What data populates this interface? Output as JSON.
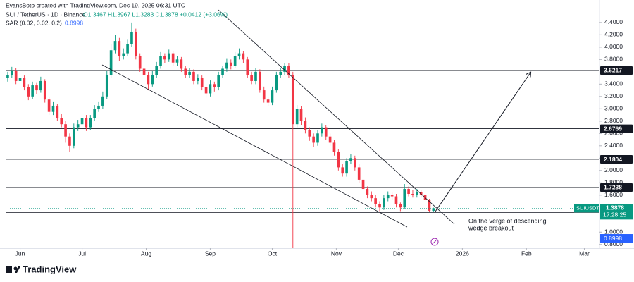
{
  "chart_data": {
    "type": "candlestick",
    "attribution": "EvansBoto created with TradingView.com, Dec 19, 2025 06:31 UTC",
    "title": "SUI / TetherUS · 1D · Binance",
    "ohlc_text": "O1.3467 H1.3967 L1.3283 C1.3878 +0.0412 (+3.06%)",
    "indicator": {
      "name": "SAR (0.02, 0.02, 0.2)",
      "value": 0.8998,
      "color": "#2962ff"
    },
    "up_color": "#089981",
    "down_color": "#f23645",
    "candles": [
      [
        3.5,
        3.6,
        3.44,
        3.55
      ],
      [
        3.55,
        3.68,
        3.5,
        3.62
      ],
      [
        3.62,
        3.66,
        3.4,
        3.45
      ],
      [
        3.45,
        3.56,
        3.38,
        3.5
      ],
      [
        3.5,
        3.54,
        3.3,
        3.35
      ],
      [
        3.35,
        3.4,
        3.14,
        3.2
      ],
      [
        3.2,
        3.44,
        3.16,
        3.38
      ],
      [
        3.38,
        3.42,
        3.24,
        3.3
      ],
      [
        3.3,
        3.52,
        3.26,
        3.45
      ],
      [
        3.45,
        3.48,
        3.1,
        3.15
      ],
      [
        3.15,
        3.2,
        2.9,
        2.95
      ],
      [
        2.95,
        3.12,
        2.9,
        3.05
      ],
      [
        3.05,
        3.08,
        2.8,
        2.85
      ],
      [
        2.85,
        2.92,
        2.7,
        2.75
      ],
      [
        2.75,
        2.8,
        2.45,
        2.55
      ],
      [
        2.55,
        2.6,
        2.3,
        2.4
      ],
      [
        2.4,
        2.76,
        2.36,
        2.7
      ],
      [
        2.7,
        2.82,
        2.64,
        2.75
      ],
      [
        2.75,
        2.92,
        2.7,
        2.85
      ],
      [
        2.85,
        2.9,
        2.64,
        2.7
      ],
      [
        2.7,
        2.9,
        2.66,
        2.85
      ],
      [
        2.85,
        3.06,
        2.8,
        3.0
      ],
      [
        3.0,
        3.12,
        2.95,
        3.05
      ],
      [
        3.05,
        3.28,
        3.0,
        3.2
      ],
      [
        3.2,
        3.62,
        3.16,
        3.55
      ],
      [
        3.55,
        4.05,
        3.5,
        3.95
      ],
      [
        3.95,
        4.2,
        3.9,
        4.1
      ],
      [
        4.1,
        4.15,
        3.78,
        3.85
      ],
      [
        3.85,
        3.98,
        3.8,
        3.9
      ],
      [
        3.9,
        4.12,
        3.85,
        4.05
      ],
      [
        4.05,
        4.4,
        4.0,
        4.25
      ],
      [
        4.25,
        4.3,
        3.8,
        3.85
      ],
      [
        3.85,
        3.9,
        3.6,
        3.65
      ],
      [
        3.65,
        3.7,
        3.48,
        3.55
      ],
      [
        3.55,
        3.6,
        3.3,
        3.4
      ],
      [
        3.4,
        3.62,
        3.36,
        3.55
      ],
      [
        3.55,
        3.76,
        3.5,
        3.7
      ],
      [
        3.7,
        3.92,
        3.65,
        3.85
      ],
      [
        3.85,
        3.9,
        3.74,
        3.8
      ],
      [
        3.8,
        3.96,
        3.76,
        3.9
      ],
      [
        3.9,
        3.94,
        3.7,
        3.75
      ],
      [
        3.75,
        3.86,
        3.7,
        3.8
      ],
      [
        3.8,
        3.84,
        3.6,
        3.65
      ],
      [
        3.65,
        3.7,
        3.5,
        3.55
      ],
      [
        3.55,
        3.66,
        3.5,
        3.6
      ],
      [
        3.6,
        3.64,
        3.4,
        3.45
      ],
      [
        3.45,
        3.56,
        3.4,
        3.5
      ],
      [
        3.5,
        3.54,
        3.3,
        3.35
      ],
      [
        3.35,
        3.4,
        3.18,
        3.25
      ],
      [
        3.25,
        3.46,
        3.2,
        3.4
      ],
      [
        3.4,
        3.44,
        3.28,
        3.35
      ],
      [
        3.35,
        3.6,
        3.3,
        3.55
      ],
      [
        3.55,
        3.7,
        3.5,
        3.65
      ],
      [
        3.65,
        3.82,
        3.6,
        3.75
      ],
      [
        3.75,
        3.8,
        3.64,
        3.7
      ],
      [
        3.7,
        3.92,
        3.66,
        3.85
      ],
      [
        3.85,
        3.98,
        3.8,
        3.9
      ],
      [
        3.9,
        3.94,
        3.74,
        3.8
      ],
      [
        3.8,
        3.84,
        3.5,
        3.55
      ],
      [
        3.55,
        3.6,
        3.4,
        3.45
      ],
      [
        3.45,
        3.66,
        3.4,
        3.6
      ],
      [
        3.6,
        3.64,
        3.26,
        3.3
      ],
      [
        3.3,
        3.36,
        3.1,
        3.15
      ],
      [
        3.15,
        3.2,
        3.04,
        3.1
      ],
      [
        3.1,
        3.36,
        3.06,
        3.3
      ],
      [
        3.3,
        3.6,
        3.26,
        3.55
      ],
      [
        3.55,
        3.66,
        3.5,
        3.6
      ],
      [
        3.6,
        3.74,
        3.55,
        3.7
      ],
      [
        3.7,
        3.74,
        3.5,
        3.55
      ],
      [
        3.55,
        3.6,
        0.55,
        2.75
      ],
      [
        2.75,
        3.06,
        2.7,
        3.0
      ],
      [
        3.0,
        3.04,
        2.74,
        2.8
      ],
      [
        2.8,
        2.86,
        2.6,
        2.65
      ],
      [
        2.65,
        2.7,
        2.48,
        2.55
      ],
      [
        2.55,
        2.6,
        2.38,
        2.45
      ],
      [
        2.45,
        2.66,
        2.4,
        2.6
      ],
      [
        2.6,
        2.76,
        2.55,
        2.7
      ],
      [
        2.7,
        2.74,
        2.5,
        2.55
      ],
      [
        2.55,
        2.6,
        2.4,
        2.45
      ],
      [
        2.45,
        2.5,
        2.24,
        2.3
      ],
      [
        2.3,
        2.34,
        2.0,
        2.05
      ],
      [
        2.05,
        2.1,
        1.9,
        1.95
      ],
      [
        1.95,
        2.2,
        1.9,
        2.15
      ],
      [
        2.15,
        2.26,
        2.1,
        2.2
      ],
      [
        2.2,
        2.24,
        2.0,
        2.05
      ],
      [
        2.05,
        2.1,
        1.8,
        1.85
      ],
      [
        1.85,
        1.9,
        1.65,
        1.7
      ],
      [
        1.7,
        1.74,
        1.55,
        1.6
      ],
      [
        1.6,
        1.66,
        1.5,
        1.55
      ],
      [
        1.55,
        1.6,
        1.4,
        1.45
      ],
      [
        1.45,
        1.5,
        1.34,
        1.4
      ],
      [
        1.4,
        1.6,
        1.36,
        1.55
      ],
      [
        1.55,
        1.66,
        1.5,
        1.6
      ],
      [
        1.6,
        1.64,
        1.52,
        1.58
      ],
      [
        1.58,
        1.62,
        1.4,
        1.45
      ],
      [
        1.45,
        1.48,
        1.34,
        1.4
      ],
      [
        1.4,
        1.78,
        1.38,
        1.7
      ],
      [
        1.7,
        1.74,
        1.58,
        1.62
      ],
      [
        1.62,
        1.68,
        1.56,
        1.6
      ],
      [
        1.6,
        1.7,
        1.56,
        1.65
      ],
      [
        1.65,
        1.68,
        1.56,
        1.6
      ],
      [
        1.6,
        1.62,
        1.48,
        1.52
      ],
      [
        1.52,
        1.54,
        1.33,
        1.3466
      ],
      [
        1.3467,
        1.3967,
        1.3283,
        1.3878
      ]
    ],
    "xlim": [
      -0.5,
      143
    ],
    "xticks": [
      {
        "value": 3,
        "label": "Jun"
      },
      {
        "value": 18,
        "label": "Jul"
      },
      {
        "value": 33.5,
        "label": "Aug"
      },
      {
        "value": 49,
        "label": "Sep"
      },
      {
        "value": 64,
        "label": "Oct"
      },
      {
        "value": 79.5,
        "label": "Nov"
      },
      {
        "value": 94.5,
        "label": "Dec"
      },
      {
        "value": 110,
        "label": "2026"
      },
      {
        "value": 125.5,
        "label": "Feb"
      },
      {
        "value": 139.5,
        "label": "Mar"
      }
    ],
    "ylim": [
      0.74,
      4.65
    ],
    "yticks": [
      {
        "value": 4.4,
        "label": "4.4000"
      },
      {
        "value": 4.2,
        "label": "4.2000"
      },
      {
        "value": 4.0,
        "label": "4.0000"
      },
      {
        "value": 3.8,
        "label": "3.8000"
      },
      {
        "value": 3.4,
        "label": "3.4000"
      },
      {
        "value": 3.2,
        "label": "3.2000"
      },
      {
        "value": 3.0,
        "label": "3.0000"
      },
      {
        "value": 2.8,
        "label": "2.8000"
      },
      {
        "value": 2.6,
        "label": "2.6000"
      },
      {
        "value": 2.4,
        "label": "2.4000"
      },
      {
        "value": 2.2,
        "label": "2.2000"
      },
      {
        "value": 2.0,
        "label": "2.0000"
      },
      {
        "value": 1.8,
        "label": "1.8000"
      },
      {
        "value": 1.6,
        "label": "1.6000"
      },
      {
        "value": 1.0,
        "label": "1.0000"
      },
      {
        "value": 0.8,
        "label": "0.8000"
      }
    ],
    "price_lines": [
      3.6217,
      2.6769,
      2.1804,
      1.7238,
      1.3187
    ],
    "last_price": {
      "symbol": "SUIUSDT",
      "value": 1.3878,
      "countdown": "17:28:25"
    },
    "annotation": [
      "On the verge of descending",
      "wedge breakout"
    ],
    "brand": "TradingView"
  }
}
